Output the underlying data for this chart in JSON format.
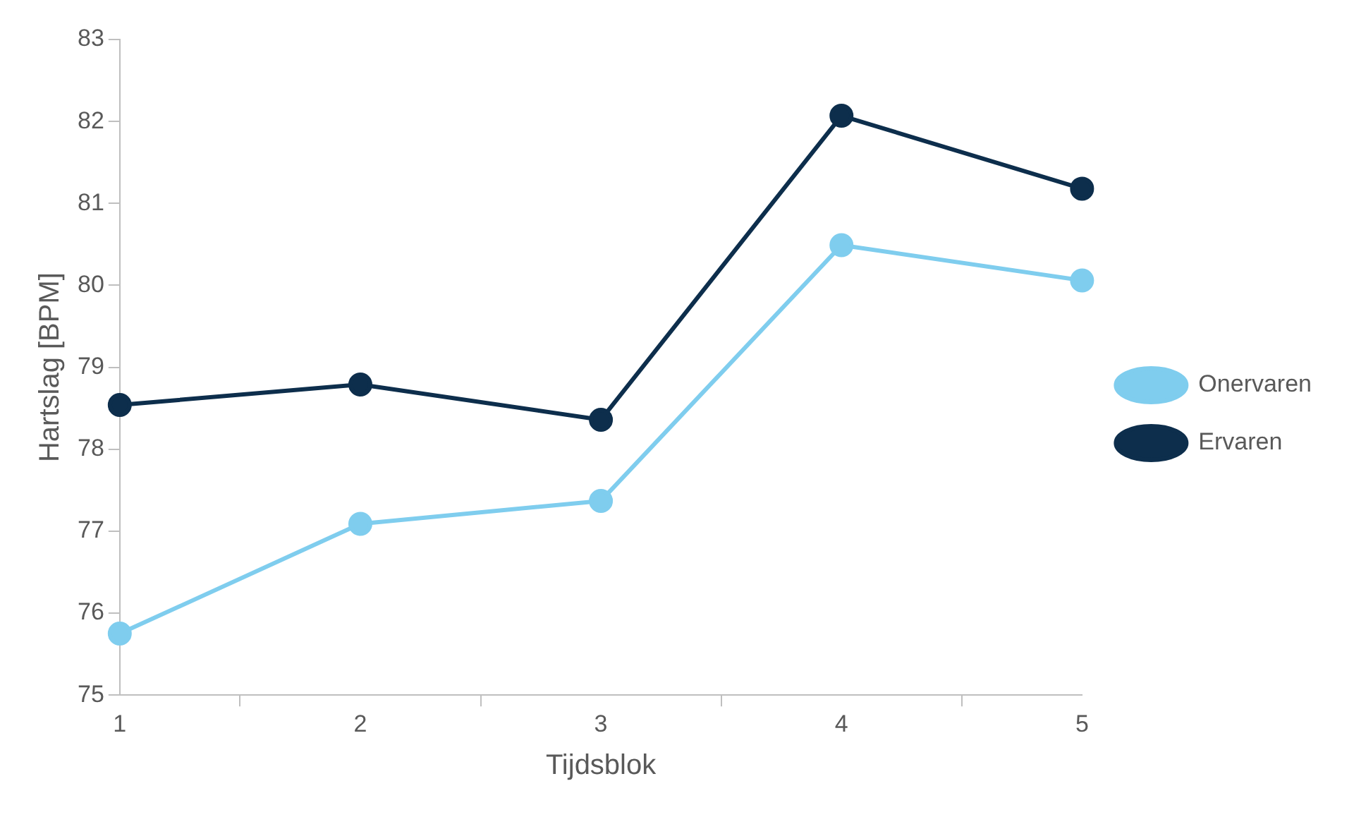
{
  "chart_data": {
    "type": "line",
    "xlabel": "Tijdsblok",
    "ylabel": "Hartslag [BPM]",
    "categories": [
      "1",
      "2",
      "3",
      "4",
      "5"
    ],
    "series": [
      {
        "name": "Onervaren",
        "color": "#7fcdee",
        "values": [
          75.75,
          77.09,
          77.37,
          80.49,
          80.06
        ]
      },
      {
        "name": "Ervaren",
        "color": "#0d2e4c",
        "values": [
          78.54,
          78.79,
          78.36,
          82.07,
          81.18
        ]
      }
    ],
    "ylim": [
      75,
      83
    ],
    "yticks": [
      75,
      76,
      77,
      78,
      79,
      80,
      81,
      82,
      83
    ],
    "grid": false,
    "legend": "right",
    "marker": "circle",
    "line_style": "solid"
  }
}
